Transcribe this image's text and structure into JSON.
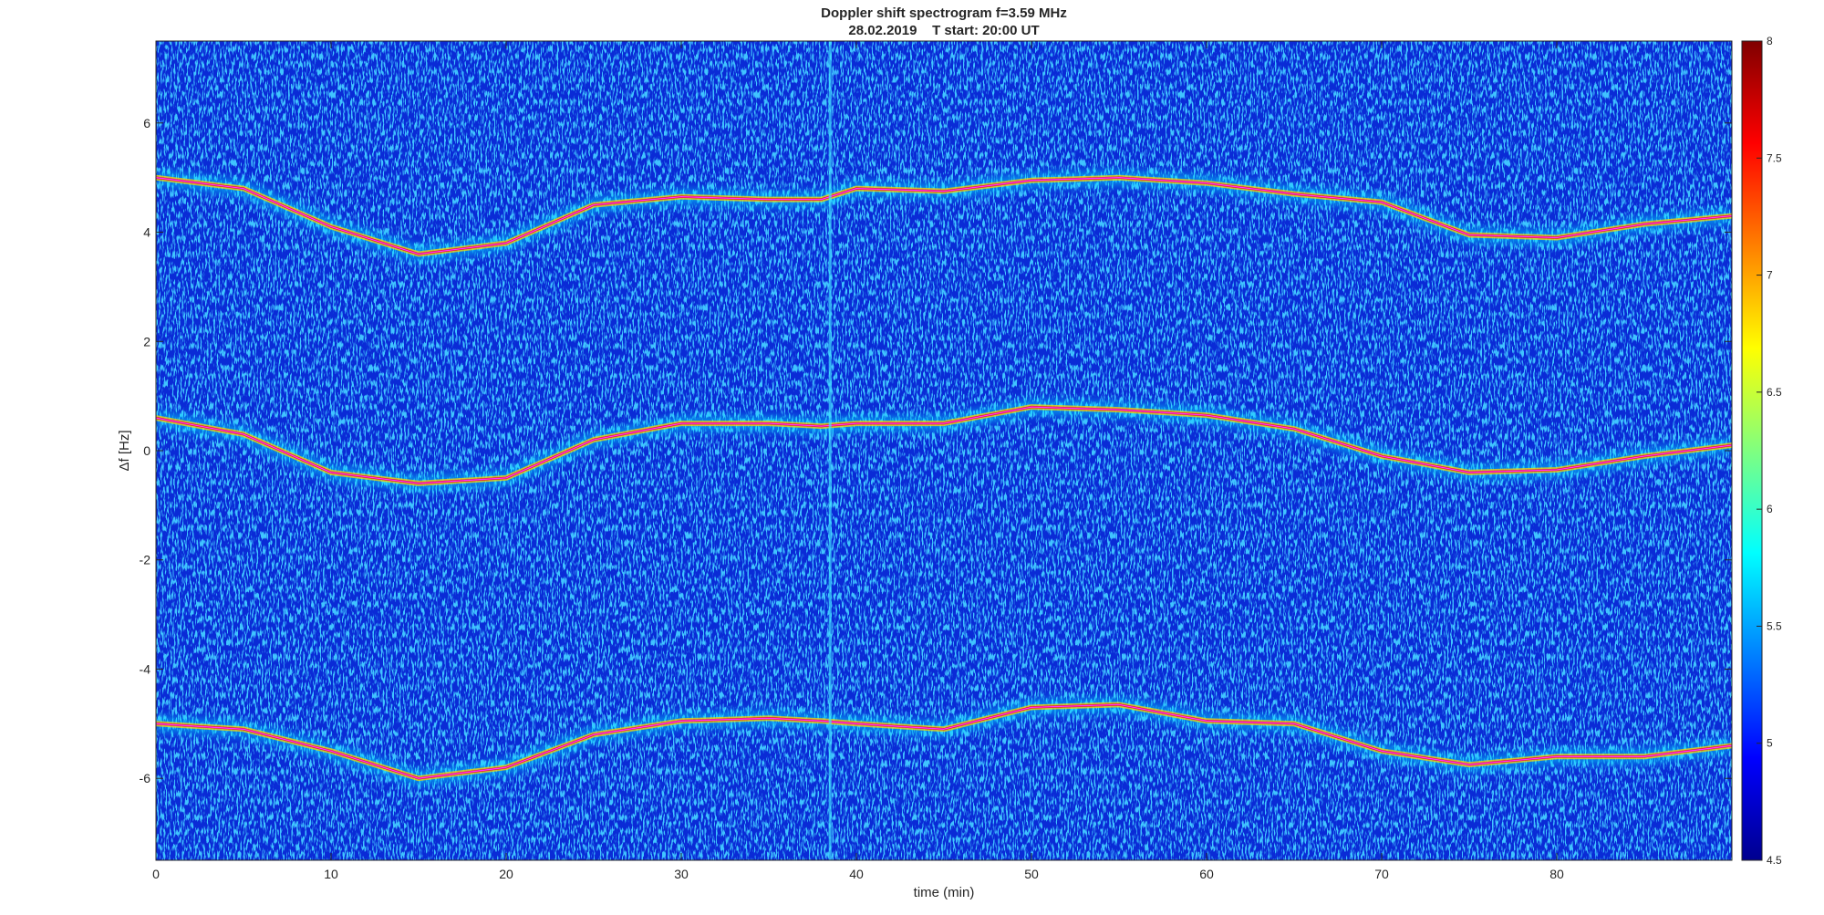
{
  "chart_data": {
    "type": "heatmap",
    "title": "Doppler shift spectrogram f=3.59 MHz",
    "subtitle": "28.02.2019    T start: 20:00 UT",
    "xlabel": "time (min)",
    "ylabel": "Δf [Hz]",
    "xlim": [
      0,
      90
    ],
    "ylim": [
      -7.5,
      7.5
    ],
    "x_ticks": [
      "0",
      "10",
      "20",
      "30",
      "40",
      "50",
      "60",
      "70",
      "80"
    ],
    "y_ticks": [
      "6",
      "4",
      "2",
      "0",
      "-2",
      "-4",
      "-6"
    ],
    "colorbar": {
      "range": [
        4.5,
        8
      ],
      "ticks": [
        "8",
        "7.5",
        "7",
        "6.5",
        "6",
        "5.5",
        "5",
        "4.5"
      ],
      "colormap": "jet",
      "colors": [
        "#00008f",
        "#0000ff",
        "#00ffff",
        "#ffff00",
        "#ff0000",
        "#800000"
      ]
    },
    "background_color": "#0a2bd6",
    "trace_color": "#ff33ff",
    "series": [
      {
        "x": [
          0,
          5,
          10,
          15,
          20,
          25,
          30,
          35,
          38,
          40,
          45,
          50,
          55,
          60,
          65,
          70,
          75,
          80,
          85,
          90
        ],
        "y": [
          5.0,
          4.8,
          4.1,
          3.6,
          3.8,
          4.5,
          4.65,
          4.6,
          4.6,
          4.8,
          4.75,
          4.95,
          5.0,
          4.9,
          4.7,
          4.55,
          3.95,
          3.9,
          4.15,
          4.3
        ]
      },
      {
        "x": [
          0,
          5,
          10,
          15,
          20,
          25,
          30,
          35,
          38,
          40,
          45,
          50,
          55,
          60,
          65,
          70,
          75,
          80,
          85,
          90
        ],
        "y": [
          0.6,
          0.3,
          -0.4,
          -0.6,
          -0.5,
          0.2,
          0.5,
          0.5,
          0.45,
          0.5,
          0.5,
          0.8,
          0.75,
          0.65,
          0.4,
          -0.1,
          -0.4,
          -0.35,
          -0.1,
          0.1
        ]
      },
      {
        "x": [
          0,
          5,
          10,
          15,
          20,
          25,
          30,
          35,
          38,
          40,
          45,
          50,
          55,
          60,
          65,
          70,
          75,
          80,
          85,
          90
        ],
        "y": [
          -5.0,
          -5.1,
          -5.5,
          -6.0,
          -5.8,
          -5.2,
          -4.95,
          -4.9,
          -4.95,
          -5.0,
          -5.1,
          -4.7,
          -4.65,
          -4.95,
          -5.0,
          -5.5,
          -5.75,
          -5.6,
          -5.6,
          -5.4
        ]
      }
    ],
    "events": [
      {
        "type": "vertical-line",
        "x": 38.5
      }
    ]
  }
}
